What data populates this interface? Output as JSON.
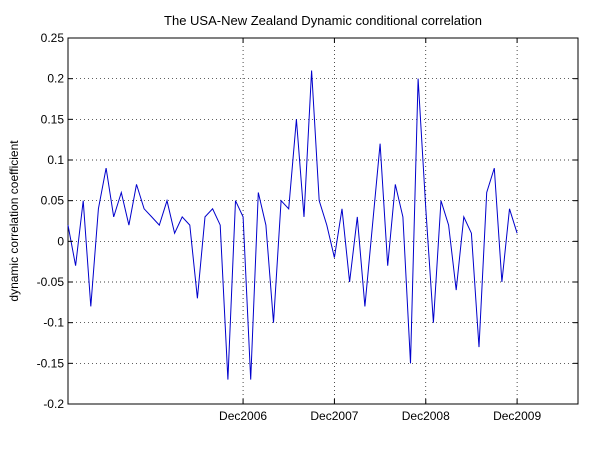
{
  "chart_data": {
    "type": "line",
    "title": "The USA-New Zealand Dynamic conditional correlation",
    "xlabel": "",
    "ylabel": "dynamic correlation coefficient",
    "ylim": [
      -0.2,
      0.25
    ],
    "y_ticks": [
      -0.2,
      -0.15,
      -0.1,
      -0.05,
      0,
      0.05,
      0.1,
      0.15,
      0.2,
      0.25
    ],
    "y_tick_labels": [
      "-0.2",
      "-0.15",
      "-0.1",
      "-0.05",
      "0",
      "0.05",
      "0.1",
      "0.15",
      "0.2",
      "0.25"
    ],
    "xlim": [
      "2005-01",
      "2010-08"
    ],
    "x_ticks": [
      "2006-12",
      "2007-12",
      "2008-12",
      "2009-12"
    ],
    "x_tick_labels": [
      "Dec2006",
      "Dec2007",
      "Dec2008",
      "Dec2009"
    ],
    "grid": true,
    "line_color": "#0000cc",
    "series": [
      {
        "x": [
          "2005-01",
          "2005-02",
          "2005-03",
          "2005-04",
          "2005-05",
          "2005-06",
          "2005-07",
          "2005-08",
          "2005-09",
          "2005-10",
          "2005-11",
          "2005-12",
          "2006-01",
          "2006-02",
          "2006-03",
          "2006-04",
          "2006-05",
          "2006-06",
          "2006-07",
          "2006-08",
          "2006-09",
          "2006-10",
          "2006-11",
          "2006-12",
          "2007-01",
          "2007-02",
          "2007-03",
          "2007-04",
          "2007-05",
          "2007-06",
          "2007-07",
          "2007-08",
          "2007-09",
          "2007-10",
          "2007-11",
          "2007-12",
          "2008-01",
          "2008-02",
          "2008-03",
          "2008-04",
          "2008-05",
          "2008-06",
          "2008-07",
          "2008-08",
          "2008-09",
          "2008-10",
          "2008-11",
          "2008-12",
          "2009-01",
          "2009-02",
          "2009-03",
          "2009-04",
          "2009-05",
          "2009-06",
          "2009-07",
          "2009-08",
          "2009-09",
          "2009-10",
          "2009-11",
          "2009-12"
        ],
        "values": [
          0.02,
          -0.03,
          0.05,
          -0.08,
          0.04,
          0.09,
          0.03,
          0.06,
          0.02,
          0.07,
          0.04,
          0.03,
          0.02,
          0.05,
          0.01,
          0.03,
          0.02,
          -0.07,
          0.03,
          0.04,
          0.02,
          -0.17,
          0.05,
          0.03,
          -0.17,
          0.06,
          0.02,
          -0.1,
          0.05,
          0.04,
          0.15,
          0.03,
          0.21,
          0.05,
          0.02,
          -0.02,
          0.04,
          -0.05,
          0.03,
          -0.08,
          0.02,
          0.12,
          -0.03,
          0.07,
          0.03,
          -0.15,
          0.2,
          0.04,
          -0.1,
          0.05,
          0.02,
          -0.06,
          0.03,
          0.01,
          -0.13,
          0.06,
          0.09,
          -0.05,
          0.04,
          0.01
        ]
      }
    ]
  }
}
